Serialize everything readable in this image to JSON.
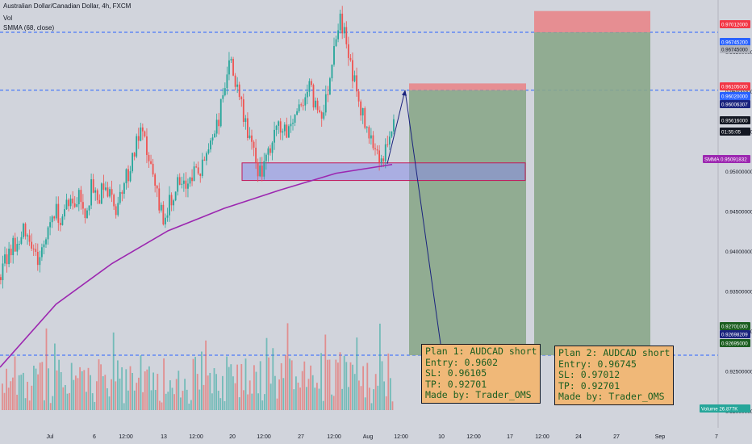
{
  "header": {
    "symbol_line": "Australian Dollar/Canadian Dollar, 4h, FXCM",
    "vol_label": "Vol",
    "smma_label": "SMMA (68, close)"
  },
  "colors": {
    "background": "#d1d4dc",
    "up_candle": "#26a69a",
    "down_candle": "#ef5350",
    "smma": "#9c27b0",
    "zone_fill": "#8a8ee8",
    "zone_border": "#c2185b",
    "profit_fill": "#8aa78a",
    "loss_fill": "#e8868a",
    "dashed_line": "#2962ff",
    "arrow": "#1a237e",
    "note_bg": "#f0b878",
    "note_text": "#1b5e20"
  },
  "chart_data": {
    "type": "candlestick",
    "title": "Australian Dollar/Canadian Dollar, 4h, FXCM",
    "ylim": [
      0.9165,
      0.9715
    ],
    "y_ticks": [
      0.965,
      0.96,
      0.955,
      0.95,
      0.945,
      0.94,
      0.935,
      0.93,
      0.925,
      0.92
    ],
    "y_tick_labels": [
      "0.96500000",
      "0.96000000",
      "0.95500000",
      "0.95000000",
      "0.94500000",
      "0.94000000",
      "0.93500000",
      "0.93000000",
      "0.92500000",
      "0.92000000"
    ],
    "x_tick_labels": [
      "Jul",
      "6",
      "12:00",
      "13",
      "12:00",
      "20",
      "12:00",
      "27",
      "12:00",
      "Aug",
      "12:00",
      "10",
      "12:00",
      "17",
      "12:00",
      "24",
      "27",
      "Sep",
      "7"
    ],
    "price_labels": [
      {
        "text": "0.97012000",
        "kind": "red"
      },
      {
        "text": "0.96745200",
        "kind": "blue"
      },
      {
        "text": "0.96745000",
        "kind": "gray"
      },
      {
        "text": "0.96105000",
        "kind": "red"
      },
      {
        "text": "0.96020000",
        "kind": "blue"
      },
      {
        "text": "0.96006307",
        "kind": "navy"
      },
      {
        "text": "0.95616000",
        "kind": "black"
      },
      {
        "text": "01:55:05",
        "kind": "black"
      },
      {
        "text": "SMMA  0.95091832",
        "kind": "purple"
      },
      {
        "text": "0.92701000",
        "kind": "green"
      },
      {
        "text": "0.92698209",
        "kind": "navy"
      },
      {
        "text": "0.92695000",
        "kind": "green"
      },
      {
        "text": "Volume  26.877K",
        "kind": "teal"
      }
    ],
    "price_path": [
      0.9368,
      0.9395,
      0.9412,
      0.9405,
      0.9432,
      0.9415,
      0.9388,
      0.9403,
      0.9438,
      0.9452,
      0.9441,
      0.9468,
      0.9455,
      0.9472,
      0.9449,
      0.9481,
      0.9463,
      0.9488,
      0.947,
      0.9455,
      0.9482,
      0.9498,
      0.9524,
      0.9548,
      0.953,
      0.9498,
      0.946,
      0.9443,
      0.9462,
      0.9485,
      0.9474,
      0.9491,
      0.9502,
      0.9498,
      0.9525,
      0.9548,
      0.9566,
      0.9612,
      0.9638,
      0.96,
      0.9572,
      0.9545,
      0.9511,
      0.9497,
      0.9515,
      0.9542,
      0.956,
      0.9545,
      0.9562,
      0.9578,
      0.9592,
      0.9606,
      0.9582,
      0.9575,
      0.9602,
      0.966,
      0.9695,
      0.9662,
      0.9628,
      0.959,
      0.9562,
      0.9548,
      0.9531,
      0.9511,
      0.954,
      0.9556
    ],
    "smma_path": [
      0.9255,
      0.9334,
      0.9385,
      0.9426,
      0.9454,
      0.9477,
      0.9498,
      0.9509
    ],
    "trade_plans": [
      {
        "entry": 0.9602,
        "sl": 0.96105,
        "tp": 0.92701
      },
      {
        "entry": 0.96745,
        "sl": 0.97012,
        "tp": 0.92701
      }
    ],
    "zone": [
      0.9492,
      0.9509
    ],
    "grid": false
  },
  "notes": {
    "plan1": [
      "Plan 1: AUDCAD short",
      "Entry: 0.9602",
      "SL: 0.96105",
      "TP: 0.92701",
      "Made by: Trader_OMS"
    ],
    "plan2": [
      "Plan 2: AUDCAD short",
      "Entry: 0.96745",
      "SL: 0.97012",
      "TP: 0.92701",
      "Made by: Trader_OMS"
    ]
  }
}
